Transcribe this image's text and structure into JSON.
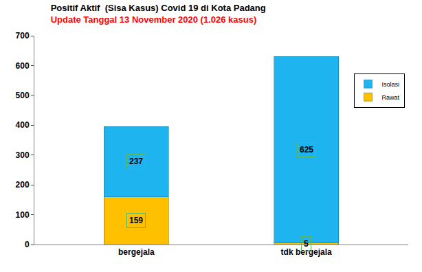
{
  "chart_data": {
    "type": "bar",
    "title": "Positif Aktif  (Sisa Kasus) Covid 19 di Kota Padang",
    "subtitle": "Update Tanggal 13 November 2020 (1.026 kasus)",
    "categories": [
      "bergejala",
      "tdk bergejala"
    ],
    "series": [
      {
        "name": "Rawat",
        "color": "#ffc000",
        "values": [
          159,
          5
        ]
      },
      {
        "name": "Isolasi",
        "color": "#1eb4f0",
        "values": [
          237,
          625
        ]
      }
    ],
    "stacked": true,
    "data_labels": true,
    "ylim": [
      0,
      700
    ],
    "yticks": [
      0,
      100,
      200,
      300,
      400,
      500,
      600,
      700
    ],
    "grid": false,
    "legend": "upper right"
  }
}
